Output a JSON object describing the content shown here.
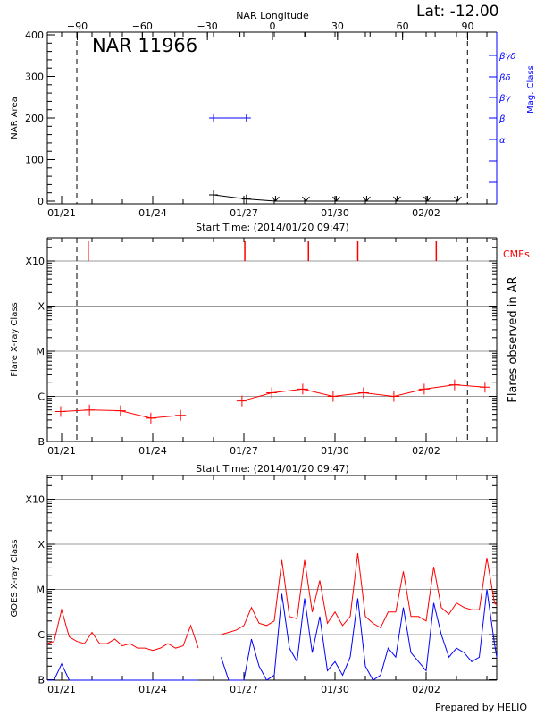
{
  "header": {
    "longitude_title": "NAR Longitude",
    "latitude": "Lat: -12.00",
    "region": "NAR 11966",
    "footer": "Prepared by HELIO"
  },
  "chart_data": [
    {
      "type": "line",
      "panel": "area",
      "ylabel": "NAR Area",
      "ylabel_right": "Mag. Class",
      "xlabel": "Start Time: (2014/01/20 09:47)",
      "ylim": [
        0,
        400
      ],
      "yticks": [
        "0",
        "100",
        "200",
        "300",
        "400"
      ],
      "xticks": [
        "01/21",
        "01/24",
        "01/27",
        "01/30",
        "02/02"
      ],
      "top_axis_ticks": [
        "-90",
        "-60",
        "-30",
        "0",
        "30",
        "60",
        "90"
      ],
      "mag_class_ticks": [
        "α",
        "β",
        "βγ",
        "βδ",
        "βγδ"
      ],
      "limb_dates": [
        "01/21 12:00",
        "02/03 08:40"
      ],
      "area_series": {
        "x": [
          "01/26 00:00",
          "01/27 02:00",
          "01/28 01:00",
          "01/29 01:00",
          "01/30 01:00",
          "01/31 01:00",
          "02/01 01:00",
          "02/02 01:00",
          "02/03 01:00"
        ],
        "y": [
          15,
          5,
          0,
          0,
          0,
          0,
          0,
          0,
          0
        ],
        "color": "#000000"
      },
      "mag_class_series": {
        "x": [
          "01/26 00:00",
          "01/27 02:00"
        ],
        "class": [
          "β",
          "β"
        ],
        "color": "#0000ff"
      }
    },
    {
      "type": "line",
      "panel": "flares",
      "ylabel": "Flare X-ray Class",
      "ylabel_right": "Flares observed in AR",
      "xlabel": "Start Time: (2014/01/20 09:47)",
      "yscale": "log",
      "yticks": [
        "B",
        "C",
        "M",
        "X",
        "X10"
      ],
      "xticks": [
        "01/21",
        "01/24",
        "01/27",
        "01/30",
        "02/02"
      ],
      "cme_label": "CMEs",
      "cme_times": [
        "01/21 21:00",
        "01/27 00:45",
        "01/29 03:00",
        "01/30 18:00",
        "02/02 08:00"
      ],
      "limb_dates": [
        "01/21 12:00",
        "02/03 08:40"
      ],
      "grid": true,
      "color": "#ff0000",
      "segments": [
        {
          "x": [
            "01/20 23:15",
            "01/21 22:00",
            "01/22 22:30",
            "01/23 22:30",
            "01/24 22:00"
          ],
          "flux": [
            4.6e-07,
            5e-07,
            4.8e-07,
            3.3e-07,
            3.8e-07
          ]
        },
        {
          "x": [
            "01/26 22:30",
            "01/27 22:00",
            "01/28 22:30",
            "01/29 22:30",
            "01/30 22:30",
            "01/31 22:30",
            "02/01 22:30",
            "02/02 22:30",
            "02/03 22:30"
          ],
          "flux": [
            7.9e-07,
            1.2e-06,
            1.45e-06,
            1e-06,
            1.2e-06,
            1e-06,
            1.45e-06,
            1.8e-06,
            1.6e-06
          ]
        }
      ]
    },
    {
      "type": "line",
      "panel": "goes",
      "ylabel": "GOES X-ray Class",
      "yscale": "log",
      "yticks": [
        "B",
        "C",
        "M",
        "X",
        "X10"
      ],
      "xticks": [
        "01/21",
        "01/24",
        "01/27",
        "01/30",
        "02/02"
      ],
      "grid": true,
      "start": "01/20 12:00",
      "step_hours": 6,
      "series": [
        {
          "color": "#ff0000",
          "log_flux": [
            -6.2,
            -6.15,
            -5.45,
            -6.05,
            -6.15,
            -6.2,
            -5.95,
            -6.2,
            -6.2,
            -6.1,
            -6.25,
            -6.2,
            -6.3,
            -6.3,
            -6.35,
            -6.3,
            -6.2,
            -6.3,
            -6.25,
            -5.8,
            -6.3,
            null,
            null,
            -6.0,
            -5.95,
            -5.9,
            -5.8,
            -5.4,
            -5.75,
            -5.8,
            -5.7,
            -4.35,
            -5.6,
            -5.65,
            -4.35,
            -5.5,
            -4.8,
            -5.75,
            -5.5,
            -5.8,
            -5.6,
            -4.2,
            -5.6,
            -5.75,
            -5.85,
            -5.5,
            -5.5,
            -4.6,
            -5.6,
            -5.6,
            -5.7,
            -4.5,
            -5.4,
            -5.55,
            -5.3,
            -5.4,
            -5.45,
            -5.45,
            -4.3,
            -5.3,
            -5.35
          ]
        },
        {
          "color": "#0000ff",
          "log_flux": [
            -8,
            -8,
            -6.65,
            -8,
            -8,
            -8,
            -8,
            -8,
            -8,
            -8,
            -8,
            -8,
            -8,
            -8,
            -8,
            -8,
            -8,
            -8,
            -8,
            -8,
            -8,
            null,
            null,
            -6.5,
            -7.5,
            -8,
            -7.8,
            -6.1,
            -6.7,
            -7.2,
            -6.9,
            -5.1,
            -6.3,
            -6.6,
            -5.2,
            -6.4,
            -5.6,
            -6.8,
            -6.6,
            -6.9,
            -6.5,
            -5.2,
            -6.7,
            -7.2,
            -6.9,
            -6.3,
            -6.5,
            -5.4,
            -6.4,
            -6.6,
            -6.8,
            -5.3,
            -6.0,
            -6.5,
            -6.3,
            -6.4,
            -6.6,
            -6.5,
            -5.0,
            -6.2,
            -6.5
          ]
        }
      ]
    }
  ]
}
